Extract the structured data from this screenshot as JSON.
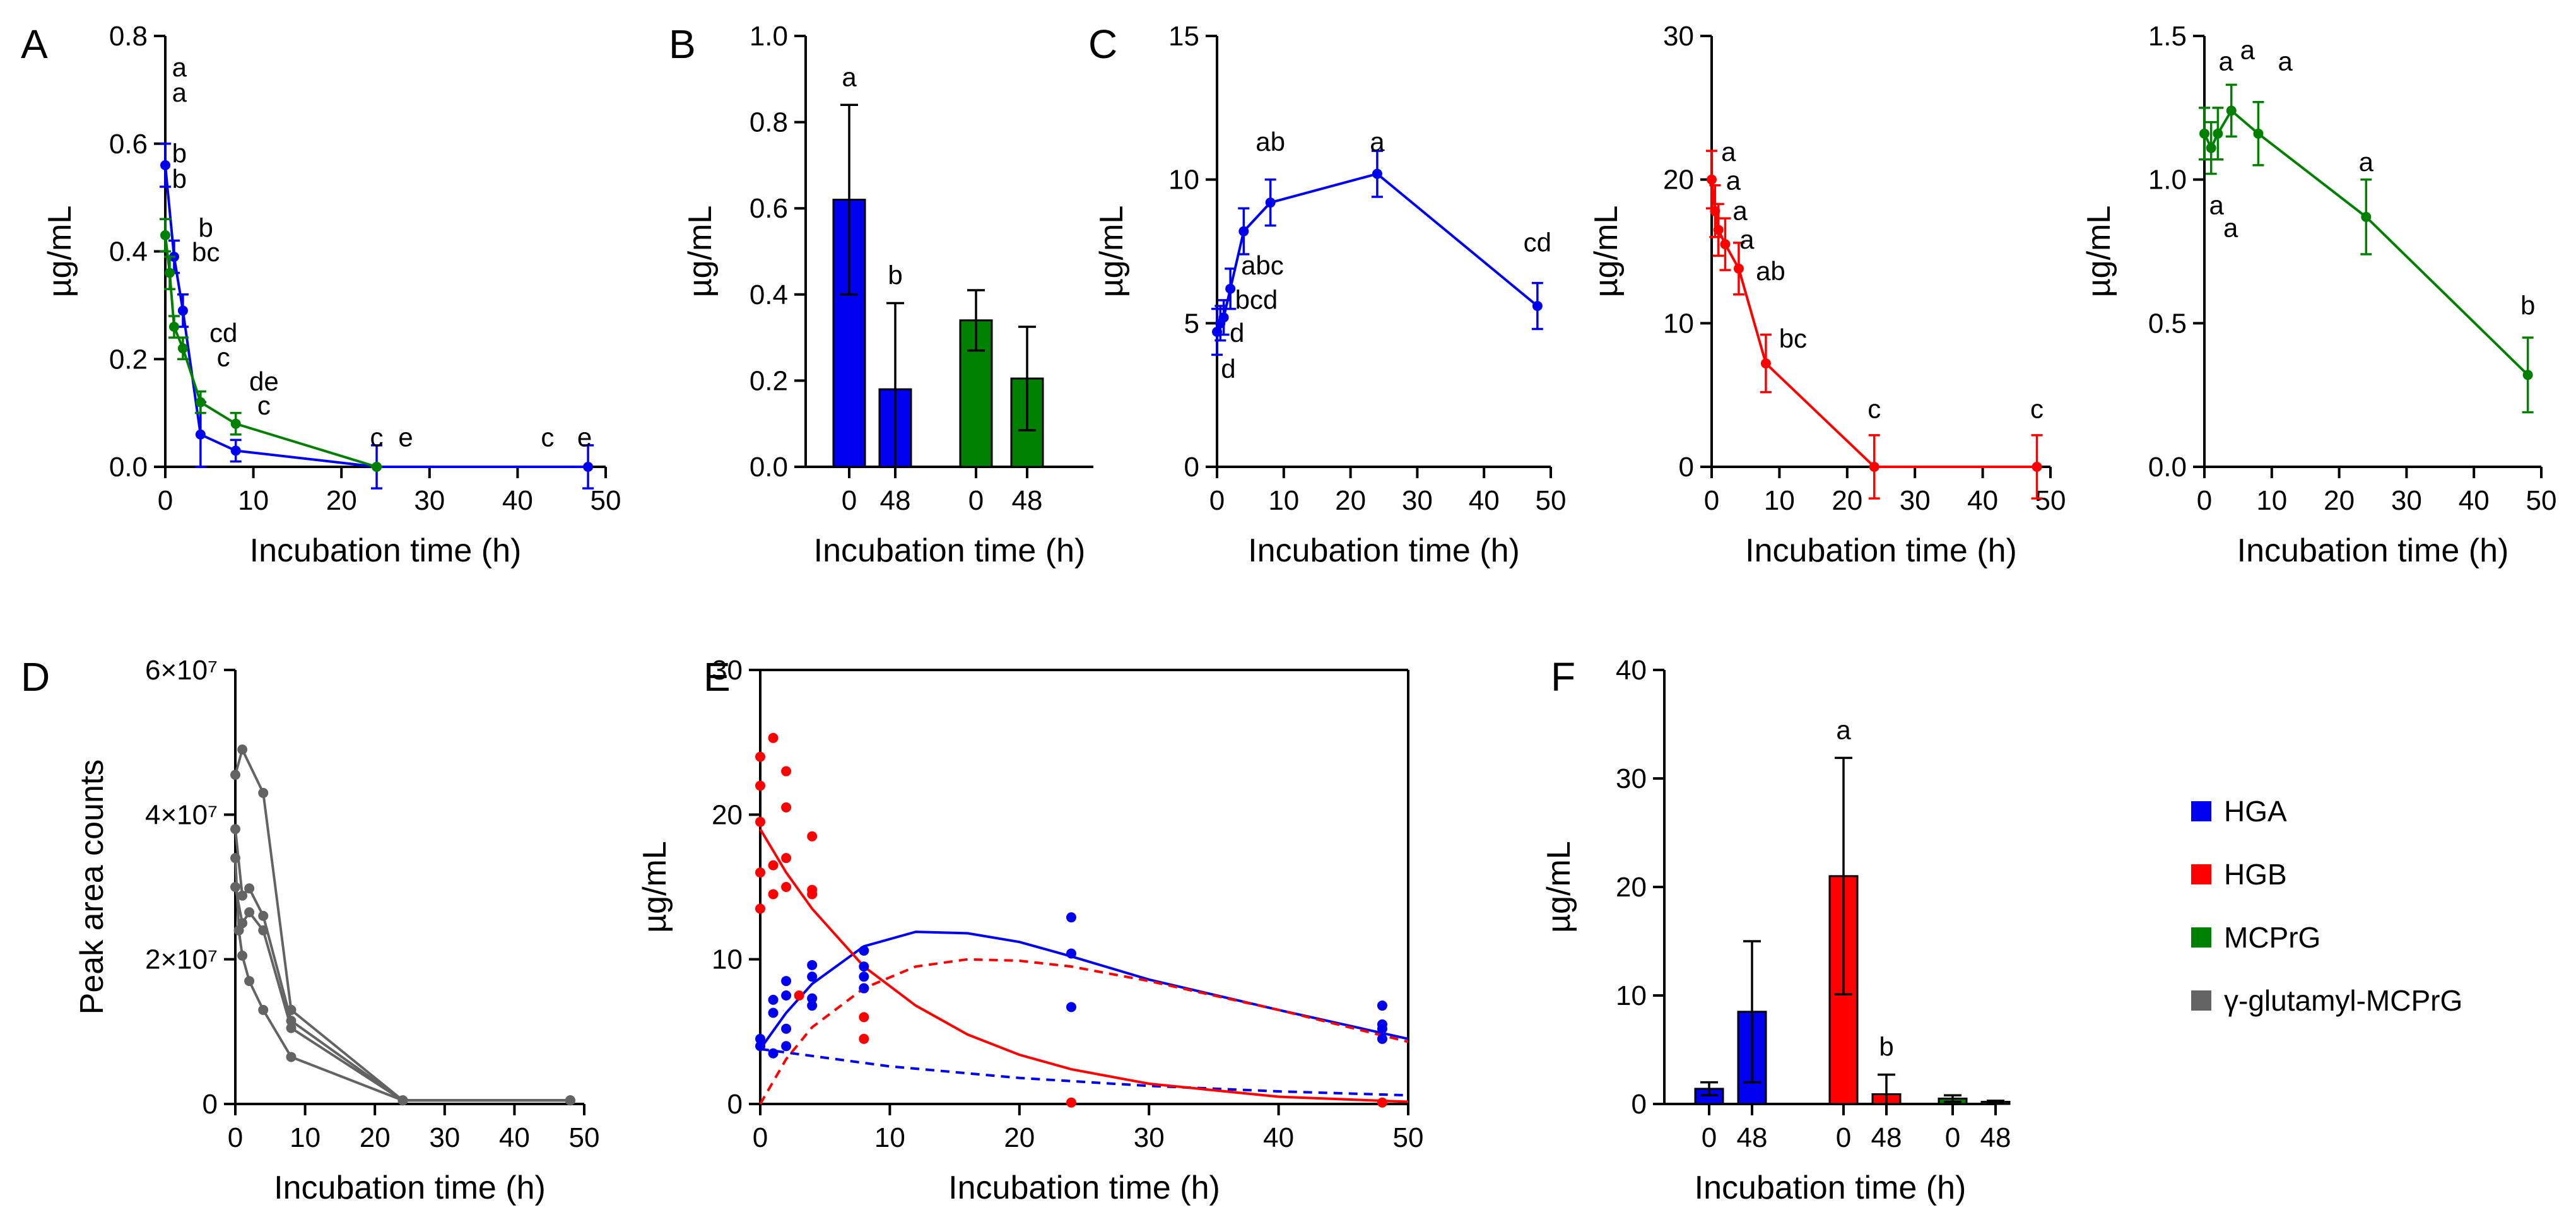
{
  "colors": {
    "HGA": "#0000f0",
    "HGB": "#ff0000",
    "MCPrG": "#008000",
    "gamma": "#636363",
    "axis": "#000000"
  },
  "legend": [
    {
      "name": "HGA",
      "color": "#0000f0"
    },
    {
      "name": "HGB",
      "color": "#ff0000"
    },
    {
      "name": "MCPrG",
      "color": "#008000"
    },
    {
      "name": "γ-glutamyl-MCPrG",
      "color": "#636363"
    }
  ],
  "chart_data": [
    {
      "panel": "A",
      "type": "line",
      "xlabel": "Incubation time (h)",
      "ylabel": "µg/mL",
      "xlim": [
        0,
        50
      ],
      "ylim": [
        0,
        0.8
      ],
      "xticks": [
        "0",
        "10",
        "20",
        "30",
        "40",
        "50"
      ],
      "yticks": [
        "0.0",
        "0.2",
        "0.4",
        "0.6",
        "0.8"
      ],
      "series": [
        {
          "name": "HGA",
          "color": "#0000f0",
          "x": [
            0,
            1,
            2,
            4,
            8,
            24,
            48
          ],
          "y": [
            0.56,
            0.39,
            0.29,
            0.06,
            0.03,
            0.0,
            0.0
          ],
          "err": [
            0.04,
            0.03,
            0.03,
            0.06,
            0.02,
            0.04,
            0.04
          ]
        },
        {
          "name": "MCPrG",
          "color": "#008000",
          "x": [
            0,
            0.5,
            1,
            2,
            4,
            8,
            24
          ],
          "y": [
            0.43,
            0.36,
            0.26,
            0.22,
            0.12,
            0.08,
            0.0
          ],
          "err": [
            0.03,
            0.03,
            0.02,
            0.02,
            0.02,
            0.02,
            0.0
          ]
        }
      ],
      "annotations": [
        {
          "text": "a",
          "x": 1.6,
          "y": 0.725
        },
        {
          "text": "a",
          "x": 1.6,
          "y": 0.678
        },
        {
          "text": "b",
          "x": 1.6,
          "y": 0.565
        },
        {
          "text": "b",
          "x": 1.6,
          "y": 0.518
        },
        {
          "text": "b",
          "x": 4.6,
          "y": 0.427
        },
        {
          "text": "bc",
          "x": 4.6,
          "y": 0.382
        },
        {
          "text": "cd",
          "x": 6.6,
          "y": 0.232
        },
        {
          "text": "c",
          "x": 6.6,
          "y": 0.187
        },
        {
          "text": "de",
          "x": 11.2,
          "y": 0.142
        },
        {
          "text": "c",
          "x": 11.2,
          "y": 0.097
        },
        {
          "text": "c",
          "x": 24,
          "y": 0.038
        },
        {
          "text": "e",
          "x": 27.3,
          "y": 0.038
        },
        {
          "text": "c",
          "x": 43.4,
          "y": 0.038
        },
        {
          "text": "e",
          "x": 47.6,
          "y": 0.038
        }
      ]
    },
    {
      "panel": "B",
      "type": "bar",
      "xlabel": "Incubation time (h)",
      "ylabel": "µg/mL",
      "ylim": [
        0,
        1.0
      ],
      "yticks": [
        "0.0",
        "0.2",
        "0.4",
        "0.6",
        "0.8",
        "1.0"
      ],
      "categories": [
        "0",
        "48",
        "0",
        "48"
      ],
      "values": [
        0.62,
        0.18,
        0.34,
        0.205
      ],
      "err": [
        0.22,
        0.2,
        0.07,
        0.12
      ],
      "colors": [
        "#0000f0",
        "#0000f0",
        "#008000",
        "#008000"
      ],
      "letters": [
        "a",
        "b",
        "",
        ""
      ]
    },
    {
      "panel": "C",
      "type": "line",
      "xlabel": "Incubation time (h)",
      "ylabel": "µg/mL",
      "xlim": [
        0,
        50
      ],
      "ylim": [
        0,
        15
      ],
      "xticks": [
        "0",
        "10",
        "20",
        "30",
        "40",
        "50"
      ],
      "yticks": [
        "0",
        "5",
        "10",
        "15"
      ],
      "series": [
        {
          "name": "HGA",
          "color": "#0000f0",
          "x": [
            0,
            0.5,
            1,
            2,
            4,
            8,
            24,
            48
          ],
          "y": [
            4.7,
            5.0,
            5.2,
            6.2,
            8.2,
            9.2,
            10.2,
            5.6
          ],
          "err": [
            0.8,
            0.6,
            0.6,
            0.7,
            0.8,
            0.8,
            0.8,
            0.8
          ]
        }
      ],
      "annotations": [
        {
          "text": "ab",
          "x": 8,
          "y": 11.0
        },
        {
          "text": "a",
          "x": 24,
          "y": 11.0
        },
        {
          "text": "cd",
          "x": 48,
          "y": 7.5
        },
        {
          "text": "abc",
          "x": 6.8,
          "y": 6.7
        },
        {
          "text": "bcd",
          "x": 5.9,
          "y": 5.5
        },
        {
          "text": "d",
          "x": 3.0,
          "y": 4.35
        },
        {
          "text": "d",
          "x": 1.7,
          "y": 3.1
        }
      ]
    },
    {
      "panel": "C2",
      "type": "line",
      "xlabel": "Incubation time (h)",
      "ylabel": "µg/mL",
      "xlim": [
        0,
        50
      ],
      "ylim": [
        0,
        30
      ],
      "xticks": [
        "0",
        "10",
        "20",
        "30",
        "40",
        "50"
      ],
      "yticks": [
        "0",
        "10",
        "20",
        "30"
      ],
      "series": [
        {
          "name": "HGB",
          "color": "#ff0000",
          "x": [
            0,
            0.5,
            1,
            2,
            4,
            8,
            24,
            48
          ],
          "y": [
            20.0,
            17.8,
            16.5,
            15.5,
            13.8,
            7.2,
            0.0,
            0.0
          ],
          "err": [
            2.0,
            1.8,
            1.8,
            1.8,
            1.8,
            2.0,
            2.2,
            2.2
          ]
        }
      ],
      "annotations": [
        {
          "text": "a",
          "x": 2.5,
          "y": 21.3
        },
        {
          "text": "a",
          "x": 3.2,
          "y": 19.3
        },
        {
          "text": "a",
          "x": 4.2,
          "y": 17.2
        },
        {
          "text": "a",
          "x": 5.2,
          "y": 15.2
        },
        {
          "text": "ab",
          "x": 8.7,
          "y": 13.0
        },
        {
          "text": "bc",
          "x": 12,
          "y": 8.3
        },
        {
          "text": "c",
          "x": 24,
          "y": 3.4
        },
        {
          "text": "c",
          "x": 48,
          "y": 3.4
        }
      ]
    },
    {
      "panel": "C3",
      "type": "line",
      "xlabel": "Incubation time (h)",
      "ylabel": "µg/mL",
      "xlim": [
        0,
        50
      ],
      "ylim": [
        0,
        1.5
      ],
      "xticks": [
        "0",
        "10",
        "20",
        "30",
        "40",
        "50"
      ],
      "yticks": [
        "0.0",
        "0.5",
        "1.0",
        "1.5"
      ],
      "series": [
        {
          "name": "MCPrG",
          "color": "#008000",
          "x": [
            0,
            1,
            2,
            4,
            8,
            24,
            48
          ],
          "y": [
            1.16,
            1.11,
            1.16,
            1.24,
            1.16,
            0.87,
            0.32
          ],
          "err": [
            0.09,
            0.09,
            0.09,
            0.09,
            0.11,
            0.13,
            0.13
          ]
        }
      ],
      "annotations": [
        {
          "text": "a",
          "x": 3.2,
          "y": 1.38
        },
        {
          "text": "a",
          "x": 6.4,
          "y": 1.42
        },
        {
          "text": "a",
          "x": 12,
          "y": 1.38
        },
        {
          "text": "a",
          "x": 1.8,
          "y": 0.88
        },
        {
          "text": "a",
          "x": 3.9,
          "y": 0.8
        },
        {
          "text": "a",
          "x": 24,
          "y": 1.03
        },
        {
          "text": "b",
          "x": 48,
          "y": 0.53
        }
      ]
    },
    {
      "panel": "D",
      "type": "line",
      "xlabel": "Incubation time (h)",
      "ylabel": "Peak area counts",
      "xlim": [
        0,
        50
      ],
      "ylim": [
        0,
        60000000
      ],
      "xticks": [
        "0",
        "10",
        "20",
        "30",
        "40",
        "50"
      ],
      "yticks": [
        "0",
        "2×10⁷",
        "4×10⁷",
        "6×10⁷"
      ],
      "series": [
        {
          "name": "γ-glutamyl-MCPrG rep 1",
          "x": [
            0,
            1,
            4,
            8,
            24,
            48
          ],
          "y": [
            45500000,
            49000000,
            43000000,
            13000000,
            500000,
            500000
          ]
        },
        {
          "name": "γ-glutamyl-MCPrG rep 2",
          "x": [
            0,
            1,
            2,
            4,
            8,
            24,
            48
          ],
          "y": [
            38000000,
            28800000,
            29800000,
            26000000,
            11500000,
            500000,
            500000
          ]
        },
        {
          "name": "γ-glutamyl-MCPrG rep 3",
          "x": [
            0,
            1,
            2,
            4,
            8,
            24,
            48
          ],
          "y": [
            30000000,
            25000000,
            26500000,
            24000000,
            10500000,
            500000,
            500000
          ]
        },
        {
          "name": "γ-glutamyl-MCPrG rep 4",
          "x": [
            0,
            0.5,
            1,
            2,
            4,
            8,
            24,
            48
          ],
          "y": [
            34000000,
            24000000,
            20500000,
            17000000,
            13000000,
            6500000,
            500000,
            500000
          ]
        }
      ]
    },
    {
      "panel": "E",
      "type": "scatter",
      "xlabel": "Incubation time (h)",
      "ylabel": "µg/mL",
      "xlim": [
        0,
        50
      ],
      "ylim": [
        0,
        30
      ],
      "xticks": [
        "0",
        "10",
        "20",
        "30",
        "40",
        "50"
      ],
      "yticks": [
        "0",
        "10",
        "20",
        "30"
      ],
      "points": [
        {
          "series": "HGB",
          "x": [
            0,
            0,
            0,
            0,
            0,
            1,
            1,
            1,
            2,
            2,
            2,
            2,
            3,
            4,
            4,
            4,
            8,
            8,
            8,
            24,
            48
          ],
          "y": [
            24.0,
            22.0,
            19.5,
            16.0,
            13.5,
            25.3,
            16.5,
            14.5,
            23.0,
            20.5,
            17.0,
            15.0,
            7.5,
            18.5,
            14.8,
            14.5,
            8.0,
            6.0,
            4.5,
            0.1,
            0.1
          ]
        },
        {
          "series": "HGA",
          "x": [
            0,
            0,
            1,
            1,
            1,
            2,
            2,
            2,
            2,
            4,
            4,
            4,
            4,
            8,
            8,
            8,
            8,
            24,
            24,
            24,
            48,
            48,
            48,
            48
          ],
          "y": [
            4.5,
            4.0,
            7.2,
            6.3,
            3.5,
            8.5,
            7.5,
            5.2,
            4.0,
            9.6,
            8.8,
            7.3,
            6.8,
            10.6,
            9.5,
            8.8,
            8.0,
            12.9,
            10.4,
            6.7,
            6.8,
            5.5,
            5.2,
            4.5
          ]
        }
      ],
      "fits": [
        {
          "series": "HGA total",
          "style": "solid",
          "x": [
            0,
            2,
            4,
            8,
            12,
            16,
            20,
            24,
            30,
            40,
            50
          ],
          "y": [
            3.8,
            6.3,
            8.3,
            10.9,
            11.9,
            11.8,
            11.2,
            10.2,
            8.6,
            6.5,
            4.5
          ]
        },
        {
          "series": "HGA component 1",
          "style": "dashed",
          "x": [
            0,
            10,
            20,
            30,
            40,
            50
          ],
          "y": [
            3.8,
            2.6,
            1.8,
            1.25,
            0.87,
            0.6
          ]
        },
        {
          "series": "HGA component 2",
          "style": "dashed",
          "color": "#ff0000",
          "x": [
            0,
            2,
            4,
            8,
            12,
            16,
            20,
            24,
            30,
            40,
            50
          ],
          "y": [
            0,
            3.1,
            5.3,
            8.0,
            9.5,
            10.0,
            9.9,
            9.5,
            8.5,
            6.5,
            4.3
          ]
        },
        {
          "series": "HGB fit",
          "style": "solid",
          "x": [
            0,
            2,
            4,
            8,
            12,
            16,
            20,
            24,
            30,
            40,
            50
          ],
          "y": [
            19.0,
            16.0,
            13.5,
            9.5,
            6.8,
            4.8,
            3.4,
            2.4,
            1.4,
            0.5,
            0.15
          ]
        }
      ]
    },
    {
      "panel": "F",
      "type": "bar",
      "xlabel": "Incubation time (h)",
      "ylabel": "µg/mL",
      "ylim": [
        0,
        40
      ],
      "yticks": [
        "0",
        "10",
        "20",
        "30",
        "40"
      ],
      "categories": [
        "0",
        "48",
        "0",
        "48",
        "0",
        "48"
      ],
      "values": [
        1.4,
        8.5,
        21.0,
        0.9,
        0.5,
        0.2
      ],
      "err": [
        0.6,
        6.5,
        10.9,
        1.8,
        0.3,
        0.1
      ],
      "colors": [
        "#0000f0",
        "#0000f0",
        "#ff0000",
        "#ff0000",
        "#008000",
        "#008000"
      ],
      "letters": [
        "",
        "",
        "a",
        "b",
        "",
        ""
      ]
    }
  ]
}
